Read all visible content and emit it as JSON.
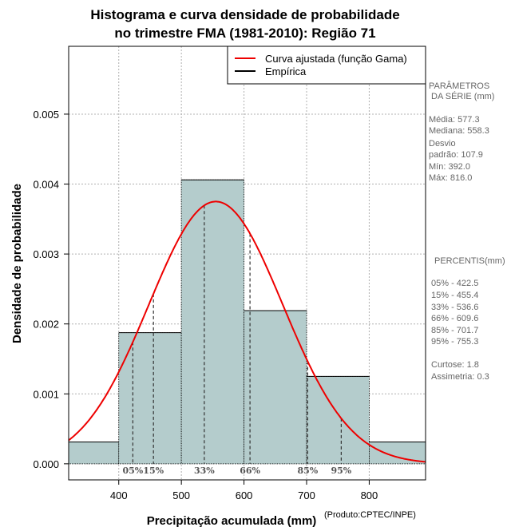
{
  "chart_data": {
    "type": "bar",
    "title_lines": [
      "Histograma e curva densidade de probabilidade",
      "no trimestre FMA (1981-2010): Região 71"
    ],
    "xlabel": "Precipitação acumulada (mm)",
    "ylabel": "Densidade de probabilidade",
    "credit": "(Produto:CPTEC/INPE)",
    "xlim": [
      320,
      890
    ],
    "ylim": [
      -0.00023,
      0.00597
    ],
    "x_ticks": [
      400,
      500,
      600,
      700,
      800
    ],
    "y_ticks": [
      0.0,
      0.001,
      0.002,
      0.003,
      0.004,
      0.005
    ],
    "y_tick_labels": [
      "0.000",
      "0.001",
      "0.002",
      "0.003",
      "0.004",
      "0.005"
    ],
    "grid": true,
    "bins": [
      {
        "x0": 300,
        "x1": 400,
        "density": 0.000313
      },
      {
        "x0": 400,
        "x1": 500,
        "density": 0.001875
      },
      {
        "x0": 500,
        "x1": 600,
        "density": 0.00406
      },
      {
        "x0": 600,
        "x1": 700,
        "density": 0.00219
      },
      {
        "x0": 700,
        "x1": 800,
        "density": 0.00125
      },
      {
        "x0": 800,
        "x1": 900,
        "density": 0.000313
      }
    ],
    "bar_color": "#b4cccc",
    "curve_color": "#ee0000",
    "curve": {
      "name": "Curva ajustada (função Gama)",
      "mode": 555,
      "peak_density": 0.00375,
      "sd": 107
    },
    "percentile_markers": [
      {
        "label": "05%",
        "value": 422.5
      },
      {
        "label": "15%",
        "value": 455.4
      },
      {
        "label": "33%",
        "value": 536.6
      },
      {
        "label": "66%",
        "value": 609.6
      },
      {
        "label": "85%",
        "value": 701.7
      },
      {
        "label": "95%",
        "value": 755.3
      }
    ],
    "legend": [
      {
        "label": "Curva ajustada (função Gama)",
        "color": "#ee0000"
      },
      {
        "label": "Empírica",
        "color": "#000000"
      }
    ],
    "legend_position": "top-right"
  },
  "side_panel": {
    "params_title_1": "PARÂMETROS",
    "params_title_2": "DA SÉRIE (mm)",
    "params": [
      "Média:  577.3",
      "Mediana:  558.3",
      "Desvio",
      "padrão:  107.9",
      "Mín:  392.0",
      "Máx:  816.0"
    ],
    "percentis_title": "PERCENTIS(mm)",
    "percentis": [
      "05% -  422.5",
      "15% -  455.4",
      "33% -  536.6",
      "66% -  609.6",
      "85% -  701.7",
      "95% -  755.3"
    ],
    "stats": [
      "Curtose:  1.8",
      "Assimetria:  0.3"
    ]
  }
}
